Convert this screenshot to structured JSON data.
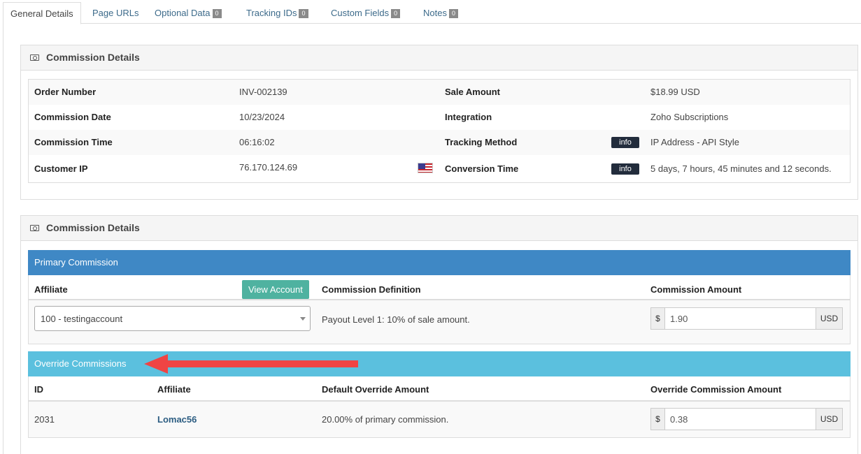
{
  "tabs": [
    {
      "label": "General Details",
      "badge": null
    },
    {
      "label": "Page URLs",
      "badge": null
    },
    {
      "label": "Optional Data",
      "badge": "0"
    },
    {
      "label": "Tracking IDs",
      "badge": "0"
    },
    {
      "label": "Custom Fields",
      "badge": "0"
    },
    {
      "label": "Notes",
      "badge": "0"
    }
  ],
  "details_panel": {
    "title": "Commission Details",
    "icon": "money-icon",
    "rows": [
      {
        "left_label": "Order Number",
        "left_value": "INV-002139",
        "right_label": "Sale Amount",
        "right_value": "$18.99 USD"
      },
      {
        "left_label": "Commission Date",
        "left_value": "10/23/2024",
        "right_label": "Integration",
        "right_value": "Zoho Subscriptions"
      },
      {
        "left_label": "Commission Time",
        "left_value": "06:16:02",
        "right_label": "Tracking Method",
        "right_value": "IP Address - API Style",
        "info": "info"
      },
      {
        "left_label": "Customer IP",
        "left_value": "76.170.124.69",
        "flag": "us-flag-icon",
        "right_label": "Conversion Time",
        "right_value": "5 days, 7 hours, 45 minutes and 12 seconds.",
        "info": "info"
      }
    ]
  },
  "commission_panel": {
    "title": "Commission Details",
    "icon": "money-icon",
    "primary": {
      "heading": "Primary Commission",
      "header_color": "#3f88c5",
      "col_affiliate": "Affiliate",
      "view_account": "View Account",
      "col_definition": "Commission Definition",
      "col_amount": "Commission Amount",
      "affiliate_select": "100 - testingaccount",
      "definition": "Payout Level 1: 10% of sale amount.",
      "currency_symbol": "$",
      "amount": "1.90",
      "currency": "USD"
    },
    "override": {
      "heading": "Override Commissions",
      "header_color": "#5bc0de",
      "col_id": "ID",
      "col_affiliate": "Affiliate",
      "col_default": "Default Override Amount",
      "col_amount": "Override Commission Amount",
      "id": "2031",
      "affiliate": "Lomac56",
      "default": "20.00% of primary commission.",
      "currency_symbol": "$",
      "amount": "0.38",
      "currency": "USD"
    }
  },
  "annotation": {
    "arrow_color": "#ef4444"
  }
}
